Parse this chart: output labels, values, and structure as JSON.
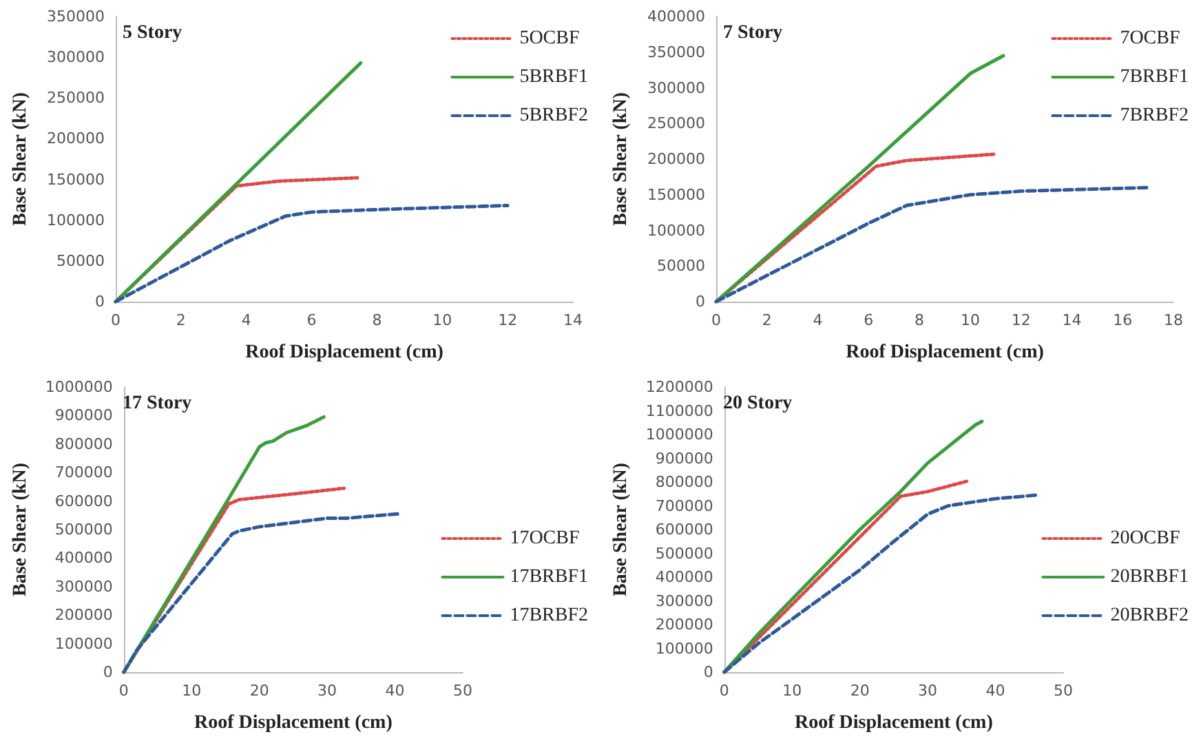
{
  "chart_data": [
    {
      "type": "line",
      "title": "5 Story",
      "xlabel": "Roof Displacement (cm)",
      "ylabel": "Base Shear (kN)",
      "xlim": [
        0,
        14
      ],
      "xticks": [
        0,
        2,
        4,
        6,
        8,
        10,
        12,
        14
      ],
      "ylim": [
        0,
        350000
      ],
      "yticks": [
        0,
        50000,
        100000,
        150000,
        200000,
        250000,
        300000,
        350000
      ],
      "grid": false,
      "legend": "top right",
      "marker": "none",
      "series": [
        {
          "name": "5OCBF",
          "color": "#e04848",
          "line_style": "dotted",
          "x": [
            0,
            3.7,
            5,
            7.4
          ],
          "values": [
            0,
            142000,
            148000,
            152000
          ]
        },
        {
          "name": "5BRBF1",
          "color": "#3a9e3a",
          "line_style": "solid",
          "x": [
            0,
            7.5
          ],
          "values": [
            0,
            293000
          ]
        },
        {
          "name": "5BRBF2",
          "color": "#2f5a9a",
          "line_style": "dashed",
          "x": [
            0,
            3.5,
            5.2,
            6,
            8,
            12
          ],
          "values": [
            0,
            75000,
            105000,
            110000,
            113000,
            118000
          ]
        }
      ]
    },
    {
      "type": "line",
      "title": "7 Story",
      "xlabel": "Roof Displacement (cm)",
      "ylabel": "Base Shear (kN)",
      "xlim": [
        0,
        18
      ],
      "xticks": [
        0,
        2,
        4,
        6,
        8,
        10,
        12,
        14,
        16,
        18
      ],
      "ylim": [
        0,
        400000
      ],
      "yticks": [
        0,
        50000,
        100000,
        150000,
        200000,
        250000,
        300000,
        350000,
        400000
      ],
      "grid": false,
      "legend": "top right",
      "marker": "none",
      "series": [
        {
          "name": "7OCBF",
          "color": "#e04848",
          "line_style": "dotted",
          "x": [
            0,
            6.3,
            7.5,
            11
          ],
          "values": [
            0,
            190000,
            198000,
            207000
          ]
        },
        {
          "name": "7BRBF1",
          "color": "#3a9e3a",
          "line_style": "solid",
          "x": [
            0,
            6,
            10,
            11.3
          ],
          "values": [
            0,
            190000,
            320000,
            345000
          ]
        },
        {
          "name": "7BRBF2",
          "color": "#2f5a9a",
          "line_style": "dashed",
          "x": [
            0,
            6,
            7.5,
            10,
            12,
            17
          ],
          "values": [
            0,
            110000,
            135000,
            150000,
            155000,
            160000
          ]
        }
      ]
    },
    {
      "type": "line",
      "title": "17 Story",
      "xlabel": "Roof Displacement (cm)",
      "ylabel": "Base Shear (kN)",
      "xlim": [
        0,
        50
      ],
      "xticks": [
        0,
        10,
        20,
        30,
        40,
        50
      ],
      "ylim": [
        0,
        1000000
      ],
      "yticks": [
        0,
        100000,
        200000,
        300000,
        400000,
        500000,
        600000,
        700000,
        800000,
        900000,
        1000000
      ],
      "grid": false,
      "legend": "right",
      "marker": "none",
      "series": [
        {
          "name": "17OCBF",
          "color": "#e04848",
          "line_style": "dotted",
          "x": [
            0,
            15.5,
            17,
            25,
            32.5
          ],
          "values": [
            0,
            590000,
            605000,
            625000,
            645000
          ]
        },
        {
          "name": "17BRBF1",
          "color": "#3a9e3a",
          "line_style": "solid",
          "x": [
            0,
            15,
            20,
            21,
            22,
            24,
            27,
            29.5
          ],
          "values": [
            0,
            590000,
            790000,
            805000,
            810000,
            840000,
            865000,
            895000
          ]
        },
        {
          "name": "17BRBF2",
          "color": "#2f5a9a",
          "line_style": "dashed",
          "x": [
            0,
            2,
            16,
            17,
            20,
            25,
            30,
            33,
            40.5
          ],
          "values": [
            0,
            80000,
            485000,
            495000,
            510000,
            525000,
            540000,
            540000,
            555000
          ]
        }
      ]
    },
    {
      "type": "line",
      "title": "20 Story",
      "xlabel": "Roof Displacement (cm)",
      "ylabel": "Base Shear (kN)",
      "xlim": [
        0,
        50
      ],
      "xticks": [
        0,
        10,
        20,
        30,
        40,
        50
      ],
      "ylim": [
        0,
        1200000
      ],
      "yticks": [
        0,
        100000,
        200000,
        300000,
        400000,
        500000,
        600000,
        700000,
        800000,
        900000,
        1000000,
        1100000,
        1200000
      ],
      "grid": false,
      "legend": "right",
      "marker": "none",
      "series": [
        {
          "name": "20OCBF",
          "color": "#e04848",
          "line_style": "dotted",
          "x": [
            0,
            26,
            30,
            36
          ],
          "values": [
            0,
            740000,
            760000,
            805000
          ]
        },
        {
          "name": "20BRBF1",
          "color": "#3a9e3a",
          "line_style": "solid",
          "x": [
            0,
            5,
            20,
            26,
            30,
            37,
            38
          ],
          "values": [
            0,
            160000,
            600000,
            760000,
            880000,
            1040000,
            1055000
          ]
        },
        {
          "name": "20BRBF2",
          "color": "#2f5a9a",
          "line_style": "dashed",
          "x": [
            0,
            5,
            20,
            25,
            30,
            33,
            40,
            46
          ],
          "values": [
            0,
            120000,
            430000,
            550000,
            665000,
            700000,
            730000,
            745000
          ]
        }
      ]
    }
  ]
}
